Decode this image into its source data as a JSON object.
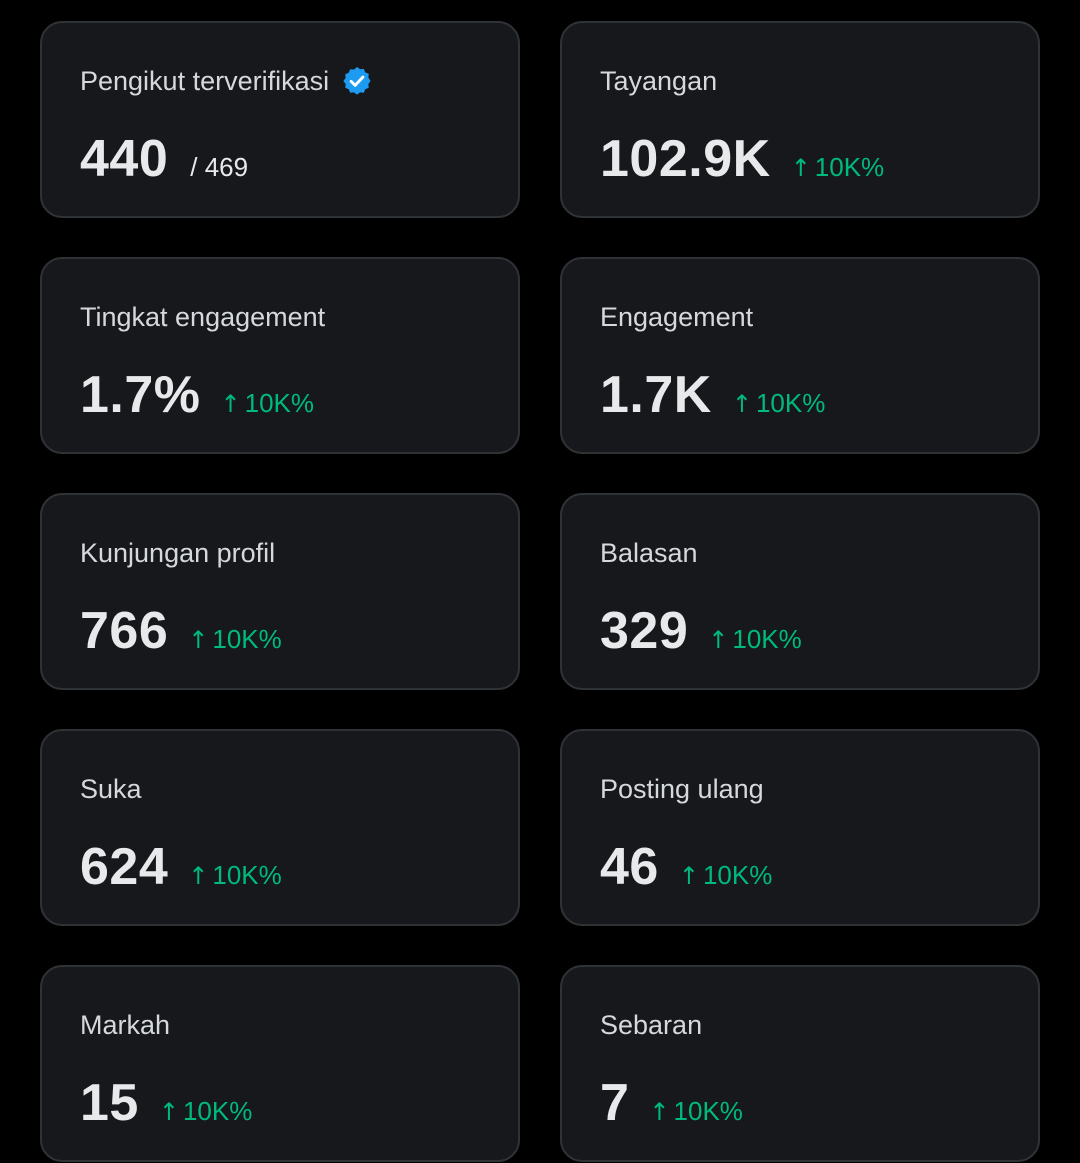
{
  "colors": {
    "background": "#000000",
    "card": "#16181c",
    "border": "#2f3336",
    "label": "#d5d8dc",
    "value": "#e7e9ea",
    "positive": "#00ba7c",
    "verified": "#1d9bf0"
  },
  "cards": [
    {
      "label": "Pengikut terverifikasi",
      "value": "440",
      "suffix": "/ 469",
      "icon": "verified-badge-icon"
    },
    {
      "label": "Tayangan",
      "value": "102.9K",
      "change": "10K%",
      "arrow": "↑"
    },
    {
      "label": "Tingkat engagement",
      "value": "1.7%",
      "change": "10K%",
      "arrow": "↑"
    },
    {
      "label": "Engagement",
      "value": "1.7K",
      "change": "10K%",
      "arrow": "↑"
    },
    {
      "label": "Kunjungan profil",
      "value": "766",
      "change": "10K%",
      "arrow": "↑"
    },
    {
      "label": "Balasan",
      "value": "329",
      "change": "10K%",
      "arrow": "↑"
    },
    {
      "label": "Suka",
      "value": "624",
      "change": "10K%",
      "arrow": "↑"
    },
    {
      "label": "Posting ulang",
      "value": "46",
      "change": "10K%",
      "arrow": "↑"
    },
    {
      "label": "Markah",
      "value": "15",
      "change": "10K%",
      "arrow": "↑"
    },
    {
      "label": "Sebaran",
      "value": "7",
      "change": "10K%",
      "arrow": "↑"
    }
  ]
}
